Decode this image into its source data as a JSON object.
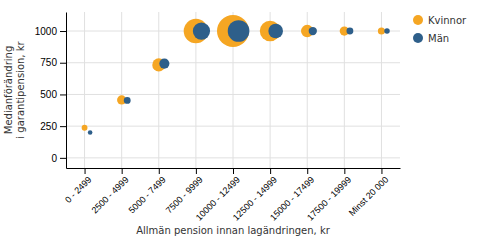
{
  "chart_data": {
    "type": "scatter",
    "categories": [
      "0 - 2499",
      "2500 - 4999",
      "5000 - 7499",
      "7500 - 9999",
      "10000 - 12499",
      "12500 - 14999",
      "15000 - 17499",
      "17500 - 19999",
      "Minst 20 000"
    ],
    "series": [
      {
        "name": "Kvinnor",
        "color": "#F5A623",
        "values": [
          237,
          457,
          733,
          1000,
          1000,
          1000,
          1000,
          1000,
          1000
        ],
        "sizes": [
          40,
          100,
          200,
          700,
          1200,
          500,
          180,
          100,
          60
        ]
      },
      {
        "name": "Män",
        "color": "#2E5F8A",
        "values": [
          200,
          453,
          743,
          1000,
          1000,
          1000,
          1000,
          1000,
          1000
        ],
        "sizes": [
          25,
          55,
          120,
          350,
          550,
          250,
          80,
          55,
          35
        ]
      }
    ],
    "ylabel": "Medianförändring\ni garantipension, kr",
    "xlabel": "Allmän pension innan lagändringen, kr",
    "ylim": [
      -80,
      1150
    ],
    "yticks": [
      0,
      250,
      500,
      750,
      1000
    ],
    "grid": true,
    "legend": "upper right"
  }
}
